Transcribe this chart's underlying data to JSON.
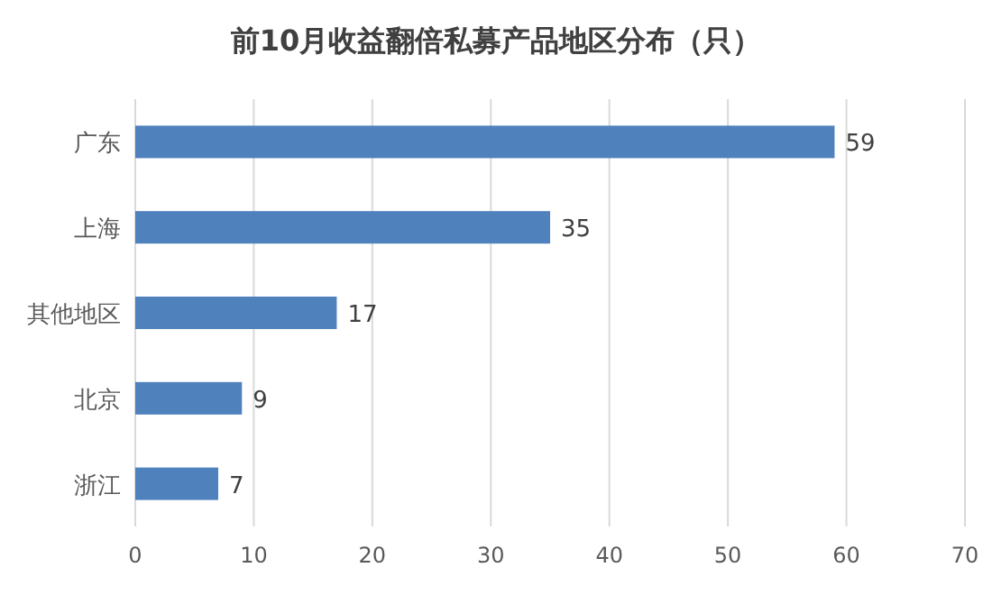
{
  "chart_data": {
    "type": "bar",
    "orientation": "horizontal",
    "title": "前10月收益翻倍私募产品地区分布（只）",
    "categories": [
      "广东",
      "上海",
      "其他地区",
      "北京",
      "浙江"
    ],
    "values": [
      59,
      35,
      17,
      9,
      7
    ],
    "color": "#4f81bd",
    "xlim": [
      0,
      70
    ],
    "xticks": [
      0,
      10,
      20,
      30,
      40,
      50,
      60,
      70
    ],
    "grid": "x",
    "data_labels": true
  }
}
